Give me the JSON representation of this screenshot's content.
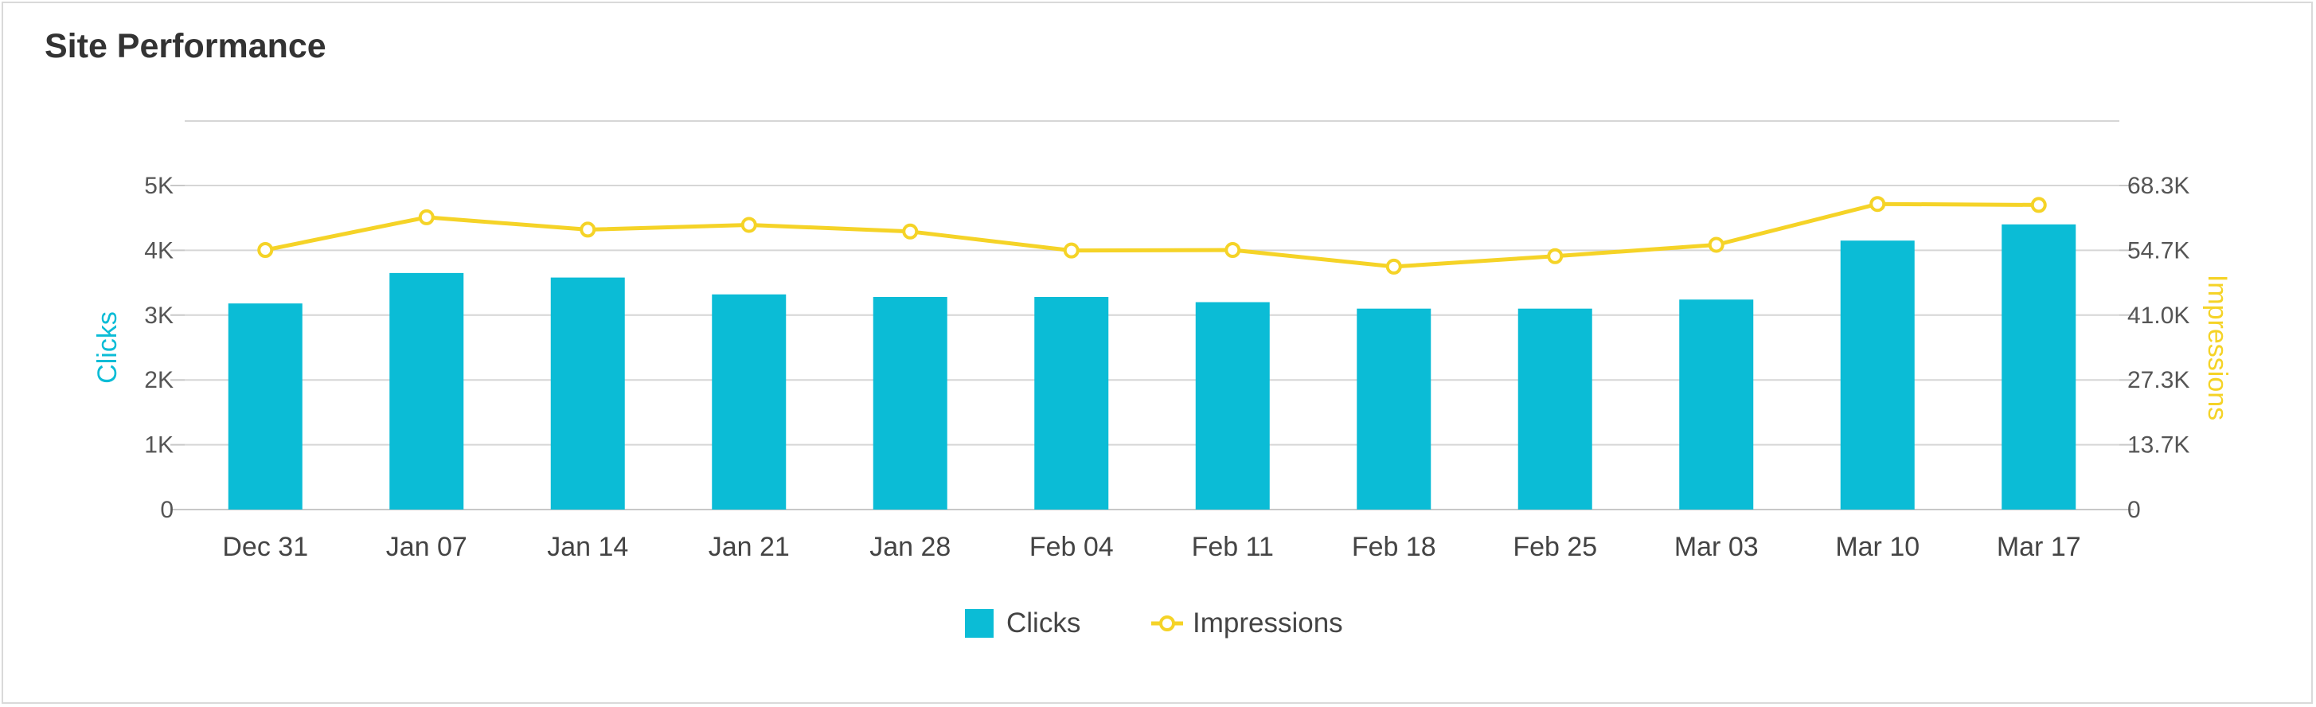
{
  "panel": {
    "title": "Site Performance"
  },
  "colors": {
    "clicks": "#0bbcd6",
    "impressions": "#f5d327",
    "grid": "#d6d6d6",
    "axis_text": "#555555",
    "title": "#333333"
  },
  "chart_data": {
    "type": "bar",
    "categories": [
      "Dec 31",
      "Jan 07",
      "Jan 14",
      "Jan 21",
      "Jan 28",
      "Feb 04",
      "Feb 11",
      "Feb 18",
      "Feb 25",
      "Mar 03",
      "Mar 10",
      "Mar 17"
    ],
    "series": [
      {
        "name": "Clicks",
        "type": "bar",
        "axis": "left",
        "values": [
          3180,
          3650,
          3580,
          3320,
          3280,
          3280,
          3200,
          3100,
          3100,
          3240,
          4150,
          4400
        ]
      },
      {
        "name": "Impressions",
        "type": "line",
        "axis": "right",
        "values": [
          54700,
          61600,
          59000,
          60000,
          58600,
          54600,
          54700,
          51200,
          53400,
          55800,
          64400,
          64200
        ]
      }
    ],
    "y_left": {
      "label": "Clicks",
      "range": [
        0,
        5000
      ],
      "ticks": [
        "0",
        "1K",
        "2K",
        "3K",
        "4K",
        "5K"
      ]
    },
    "y_right": {
      "label": "Impressions",
      "range": [
        0,
        68300
      ],
      "ticks": [
        "0",
        "13.7K",
        "27.3K",
        "41.0K",
        "54.7K",
        "68.3K"
      ]
    },
    "legend": {
      "position": "bottom",
      "items": [
        "Clicks",
        "Impressions"
      ]
    },
    "grid": true
  }
}
